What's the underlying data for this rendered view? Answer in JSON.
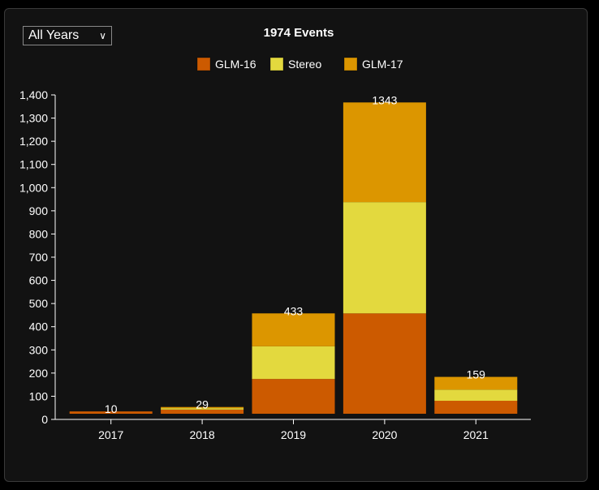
{
  "filter": {
    "selected": "All Years"
  },
  "chart_data": {
    "type": "bar",
    "stacked": true,
    "title": "1974 Events",
    "categories": [
      "2017",
      "2018",
      "2019",
      "2020",
      "2021"
    ],
    "series": [
      {
        "name": "GLM-16",
        "color": "#cc5a00",
        "values": [
          10,
          18,
          150,
          433,
          56
        ]
      },
      {
        "name": "Stereo",
        "color": "#e3d93e",
        "values": [
          0,
          6,
          141,
          480,
          48
        ]
      },
      {
        "name": "GLM-17",
        "color": "#dc9600",
        "values": [
          0,
          5,
          142,
          430,
          55
        ]
      }
    ],
    "totals": [
      "10",
      "29",
      "433",
      "1343",
      "159"
    ],
    "yticks": [
      "0",
      "100",
      "200",
      "300",
      "400",
      "500",
      "600",
      "700",
      "800",
      "900",
      "1,000",
      "1,100",
      "1,200",
      "1,300",
      "1,400"
    ],
    "ylim": [
      0,
      1400
    ],
    "xlabel": "",
    "ylabel": "",
    "legend": "top-center",
    "grid": false
  }
}
